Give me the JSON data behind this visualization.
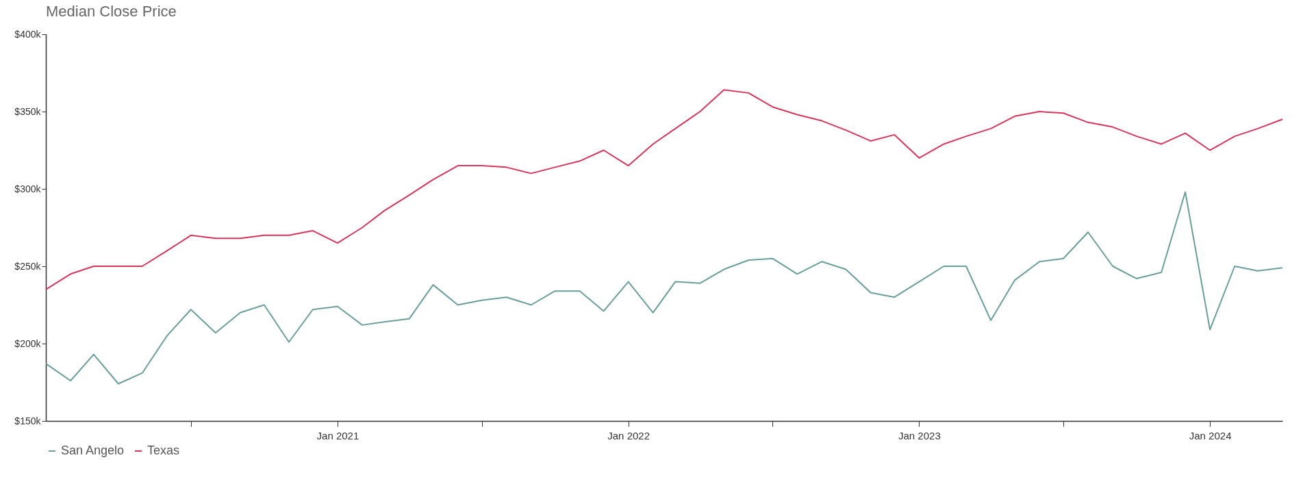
{
  "chart_data": {
    "type": "line",
    "title": "Median Close Price",
    "x": [
      "2020-01",
      "2020-02",
      "2020-03",
      "2020-04",
      "2020-05",
      "2020-06",
      "2020-07",
      "2020-08",
      "2020-09",
      "2020-10",
      "2020-11",
      "2020-12",
      "2021-01",
      "2021-02",
      "2021-03",
      "2021-04",
      "2021-05",
      "2021-06",
      "2021-07",
      "2021-08",
      "2021-09",
      "2021-10",
      "2021-11",
      "2021-12",
      "2022-01",
      "2022-02",
      "2022-03",
      "2022-04",
      "2022-05",
      "2022-06",
      "2022-07",
      "2022-08",
      "2022-09",
      "2022-10",
      "2022-11",
      "2022-12",
      "2023-01",
      "2023-02",
      "2023-03",
      "2023-04",
      "2023-05",
      "2023-06",
      "2023-07",
      "2023-08",
      "2023-09",
      "2023-10",
      "2023-11",
      "2023-12",
      "2024-01",
      "2024-02",
      "2024-03",
      "2024-04"
    ],
    "series": [
      {
        "name": "San Angelo",
        "color": "#6a9e9a",
        "values": [
          187,
          176,
          193,
          174,
          181,
          205,
          222,
          207,
          220,
          225,
          201,
          222,
          224,
          212,
          214,
          216,
          238,
          225,
          228,
          230,
          225,
          234,
          234,
          221,
          240,
          220,
          240,
          239,
          248,
          254,
          255,
          245,
          253,
          248,
          233,
          230,
          240,
          250,
          250,
          215,
          241,
          253,
          255,
          272,
          250,
          242,
          246,
          298,
          209,
          250,
          247,
          249
        ]
      },
      {
        "name": "Texas",
        "color": "#d6365a",
        "values": [
          235,
          245,
          250,
          250,
          250,
          260,
          270,
          268,
          268,
          270,
          270,
          273,
          265,
          275,
          286,
          296,
          306,
          315,
          315,
          314,
          310,
          314,
          318,
          325,
          315,
          329,
          339,
          350,
          364,
          362,
          353,
          348,
          344,
          338,
          331,
          335,
          320,
          329,
          334,
          339,
          347,
          350,
          349,
          343,
          340,
          334,
          329,
          336,
          325,
          334,
          339,
          345
        ]
      }
    ],
    "xlim": [
      "2020-01",
      "2024-04"
    ],
    "xticks": [
      {
        "value": "2020-07",
        "label": null
      },
      {
        "value": "2021-01",
        "label": "Jan 2021"
      },
      {
        "value": "2021-07",
        "label": null
      },
      {
        "value": "2022-01",
        "label": "Jan 2022"
      },
      {
        "value": "2022-07",
        "label": null
      },
      {
        "value": "2023-01",
        "label": "Jan 2023"
      },
      {
        "value": "2023-07",
        "label": null
      },
      {
        "value": "2024-01",
        "label": "Jan 2024"
      }
    ],
    "ylim": [
      150,
      400
    ],
    "yticks": [
      {
        "value": 150,
        "label": "$150k"
      },
      {
        "value": 200,
        "label": "$200k"
      },
      {
        "value": 250,
        "label": "$250k"
      },
      {
        "value": 300,
        "label": "$300k"
      },
      {
        "value": 350,
        "label": "$350k"
      },
      {
        "value": 400,
        "label": "$400k"
      }
    ],
    "legend": "bottom"
  }
}
